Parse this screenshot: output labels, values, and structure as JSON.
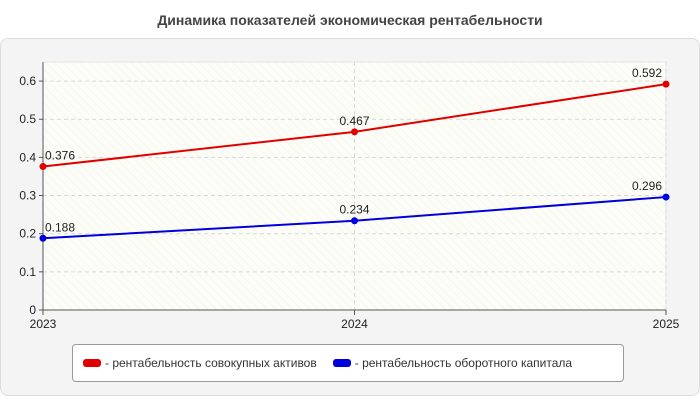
{
  "chart_data": {
    "type": "line",
    "title": "Динамика показателей экономическая рентабельности",
    "categories": [
      "2023",
      "2024",
      "2025"
    ],
    "ylim": [
      0,
      0.65
    ],
    "yticks": [
      "0",
      "0.1",
      "0.2",
      "0.3",
      "0.4",
      "0.5",
      "0.6"
    ],
    "grid": true,
    "legend_position": "bottom",
    "series": [
      {
        "name": "- рентабельность совокупных активов",
        "color": "#e00000",
        "values": [
          0.376,
          0.467,
          0.592
        ],
        "labels": [
          "0.376",
          "0.467",
          "0.592"
        ]
      },
      {
        "name": "- рентабельность оборотного капитала",
        "color": "#0000dd",
        "values": [
          0.188,
          0.234,
          0.296
        ],
        "labels": [
          "0.188",
          "0.234",
          "0.296"
        ]
      }
    ]
  }
}
